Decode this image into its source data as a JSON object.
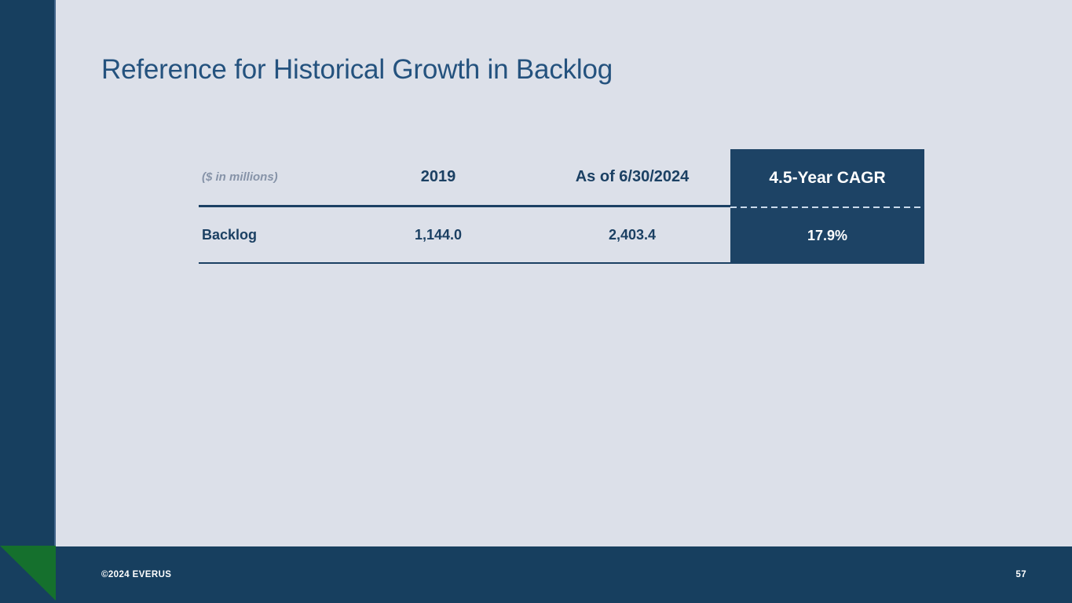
{
  "slide": {
    "title": "Reference for Historical Growth in Backlog"
  },
  "chart_data": {
    "type": "table",
    "title": "Reference for Historical Growth in Backlog",
    "unit_note": "($ in millions)",
    "columns": [
      "($ in millions)",
      "2019",
      "As of 6/30/2024",
      "4.5-Year CAGR"
    ],
    "rows": [
      [
        "Backlog",
        "1,144.0",
        "2,403.4",
        "17.9%"
      ]
    ]
  },
  "table": {
    "unit_label": "($ in millions)",
    "col_2019": "2019",
    "col_asof": "As of 6/30/2024",
    "col_cagr": "4.5-Year CAGR",
    "row_backlog": {
      "label": "Backlog",
      "value_2019": "1,144.0",
      "value_asof": "2,403.4",
      "cagr": "17.9%"
    }
  },
  "footer": {
    "copyright": "©2024 EVERUS",
    "page_number": "57"
  },
  "colors": {
    "navy": "#173f5f",
    "box_navy": "#1d4365",
    "background": "#dce0e9",
    "green": "#15702d",
    "title_text": "#24527e",
    "table_text": "#1b4063",
    "muted_gray": "#8693a8"
  }
}
